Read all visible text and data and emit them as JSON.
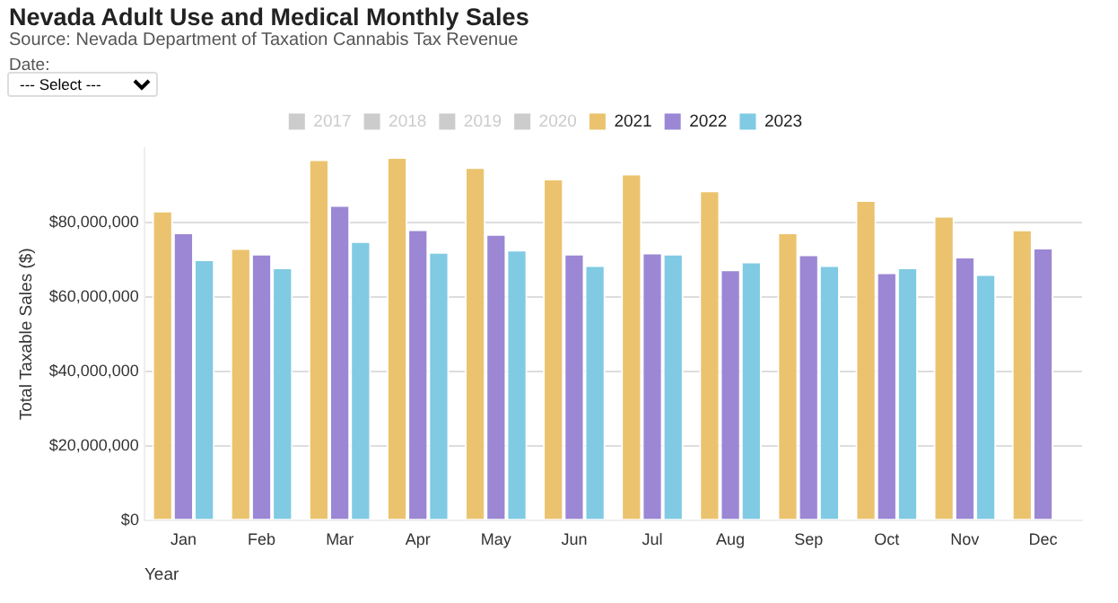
{
  "chart_data": {
    "type": "bar",
    "title": "Nevada Adult Use and Medical Monthly Sales",
    "subtitle": "Source: Nevada Department of Taxation Cannabis Tax Revenue",
    "annotations": [
      "Date:",
      "--- Select ---"
    ],
    "xlabel": "Year",
    "ylabel": "Total Taxable Sales ($)",
    "categories": [
      "Jan",
      "Feb",
      "Mar",
      "Apr",
      "May",
      "Jun",
      "Jul",
      "Aug",
      "Sep",
      "Oct",
      "Nov",
      "Dec"
    ],
    "series": [
      {
        "name": "2017",
        "color": "#cccccc",
        "values": [
          null,
          null,
          null,
          null,
          null,
          null,
          null,
          null,
          null,
          null,
          null,
          null
        ]
      },
      {
        "name": "2018",
        "color": "#cccccc",
        "values": [
          null,
          null,
          null,
          null,
          null,
          null,
          null,
          null,
          null,
          null,
          null,
          null
        ]
      },
      {
        "name": "2019",
        "color": "#cccccc",
        "values": [
          null,
          null,
          null,
          null,
          null,
          null,
          null,
          null,
          null,
          null,
          null,
          null
        ]
      },
      {
        "name": "2020",
        "color": "#cccccc",
        "values": [
          null,
          null,
          null,
          null,
          null,
          null,
          null,
          null,
          null,
          null,
          null,
          null
        ]
      },
      {
        "name": "2021",
        "color": "#ebc36e",
        "values": [
          83200000,
          73100000,
          97000000,
          97600000,
          94900000,
          91800000,
          93100000,
          88600000,
          77300000,
          86000000,
          81800000,
          78100000
        ]
      },
      {
        "name": "2022",
        "color": "#9b87d4",
        "values": [
          77300000,
          71600000,
          84700000,
          78200000,
          76900000,
          71600000,
          71900000,
          67400000,
          71400000,
          66600000,
          70800000,
          73200000
        ]
      },
      {
        "name": "2023",
        "color": "#80cae3",
        "values": [
          70100000,
          67900000,
          75000000,
          72100000,
          72700000,
          68500000,
          71600000,
          69500000,
          68500000,
          67900000,
          66100000,
          null
        ]
      }
    ],
    "ylim": [
      0,
      100000000
    ],
    "yticks": [
      {
        "value": 0,
        "label": "$0"
      },
      {
        "value": 20000000,
        "label": "$20,000,000"
      },
      {
        "value": 40000000,
        "label": "$40,000,000"
      },
      {
        "value": 60000000,
        "label": "$60,000,000"
      },
      {
        "value": 80000000,
        "label": "$80,000,000"
      }
    ],
    "grid": "y",
    "legend": "top"
  }
}
